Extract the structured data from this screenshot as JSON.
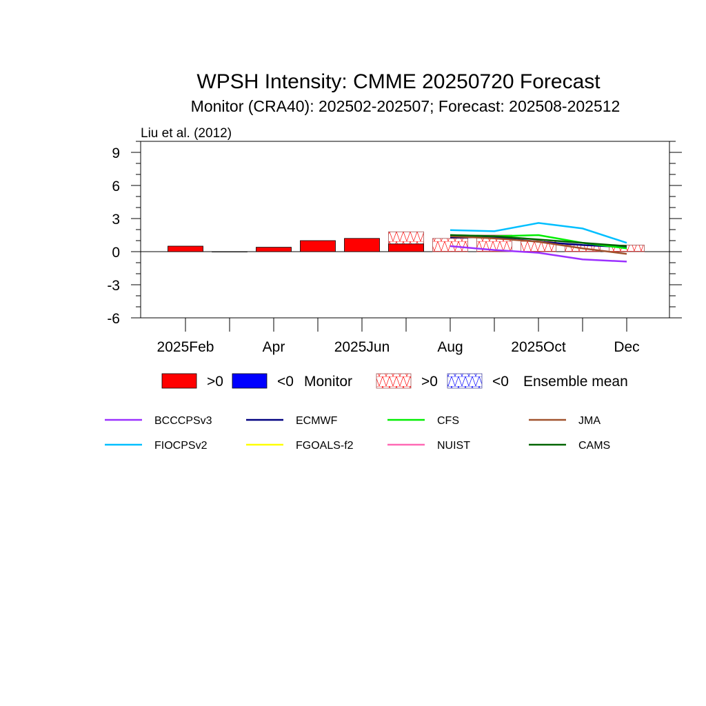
{
  "chart_data": {
    "type": "bar",
    "title": "WPSH Intensity: CMME 20250720 Forecast",
    "subtitle": "Monitor (CRA40): 202502-202507; Forecast: 202508-202512",
    "reference": "Liu et al. (2012)",
    "ylim": [
      -6,
      10
    ],
    "y_ticks": [
      "9",
      "6",
      "3",
      "0",
      "-3",
      "-6"
    ],
    "y_tick_values": [
      9,
      6,
      3,
      0,
      -3,
      -6
    ],
    "x_tick_labels": [
      "2025Feb",
      "Apr",
      "2025Jun",
      "Aug",
      "2025Oct",
      "Dec"
    ],
    "months": [
      "2025-01",
      "2025-02",
      "2025-03",
      "2025-04",
      "2025-05",
      "2025-06",
      "2025-07",
      "2025-08",
      "2025-09",
      "2025-10",
      "2025-11",
      "2025-12"
    ],
    "monitor": {
      "months": [
        "2025-02",
        "2025-03",
        "2025-04",
        "2025-05",
        "2025-06",
        "2025-07"
      ],
      "values": [
        0.5,
        0.0,
        0.4,
        1.0,
        1.2,
        0.7
      ]
    },
    "ensemble_mean": {
      "months": [
        "2025-07",
        "2025-08",
        "2025-09",
        "2025-10",
        "2025-11",
        "2025-12"
      ],
      "values": [
        1.8,
        1.2,
        1.5,
        1.0,
        0.6,
        0.6
      ]
    },
    "series": [
      {
        "name": "BCCCPSv3",
        "color": "#9b30ff",
        "months": [
          "2025-08",
          "2025-09",
          "2025-10",
          "2025-11",
          "2025-12"
        ],
        "values": [
          0.5,
          0.15,
          -0.1,
          -0.7,
          -0.9
        ]
      },
      {
        "name": "ECMWF",
        "color": "#000080",
        "months": [
          "2025-08",
          "2025-09",
          "2025-10",
          "2025-11",
          "2025-12"
        ],
        "values": [
          1.3,
          1.3,
          0.9,
          0.6,
          0.4
        ]
      },
      {
        "name": "CFS",
        "color": "#00ee00",
        "months": [
          "2025-08",
          "2025-09",
          "2025-10",
          "2025-11",
          "2025-12"
        ],
        "values": [
          1.5,
          1.4,
          1.5,
          0.8,
          0.3
        ]
      },
      {
        "name": "JMA",
        "color": "#a0522d",
        "months": [
          "2025-08",
          "2025-09",
          "2025-10",
          "2025-11",
          "2025-12"
        ],
        "values": [
          1.4,
          1.2,
          0.9,
          0.3,
          -0.2
        ]
      },
      {
        "name": "FIOCPSv2",
        "color": "#00bfff",
        "months": [
          "2025-08",
          "2025-09",
          "2025-10",
          "2025-11",
          "2025-12"
        ],
        "values": [
          1.95,
          1.85,
          2.6,
          2.1,
          0.8
        ]
      },
      {
        "name": "FGOALS-f2",
        "color": "#ffff00",
        "months": [],
        "values": []
      },
      {
        "name": "NUIST",
        "color": "#ff69b4",
        "months": [],
        "values": []
      },
      {
        "name": "CAMS",
        "color": "#006400",
        "months": [
          "2025-08",
          "2025-09",
          "2025-10",
          "2025-11",
          "2025-12"
        ],
        "values": [
          1.5,
          1.4,
          1.1,
          0.8,
          0.5
        ]
      }
    ],
    "legend_top": {
      "pos_label": ">0",
      "neg_label": "<0",
      "monitor_label": "Monitor",
      "ensemble_label": "Ensemble mean"
    },
    "colors": {
      "monitor_pos": "#ff0000",
      "monitor_neg": "#0000ff",
      "ens_pos_hatch": "#ff0000",
      "ens_neg_hatch": "#0000ff"
    },
    "grid": false
  }
}
